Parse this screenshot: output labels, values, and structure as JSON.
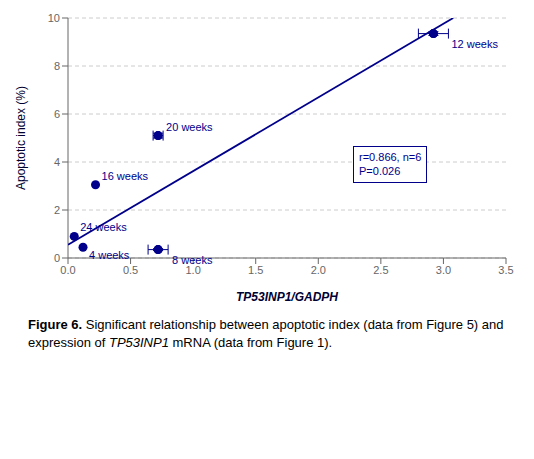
{
  "chart_data": {
    "type": "scatter",
    "x_label": "TP53INP1/GADPH",
    "y_label": "Apoptotic index (%)",
    "color": "#00008B",
    "x": [
      0.05,
      0.12,
      0.22,
      0.72,
      0.72,
      2.92
    ],
    "values": [
      0.9,
      0.45,
      3.05,
      5.1,
      0.35,
      9.35
    ],
    "xerr": [
      0.0,
      0.0,
      0.0,
      0.04,
      0.08,
      0.12
    ],
    "yerr": [
      0.0,
      0.0,
      0.0,
      0.1,
      0.04,
      0.08
    ],
    "point_labels": [
      "24 weeks",
      "4 weeks",
      "16 weeks",
      "20 weeks",
      "8 weeks",
      "12 weeks"
    ],
    "fit_line": {
      "type": "line",
      "x": [
        0.0,
        3.0778894472
      ],
      "values": [
        0.55,
        9.999120603
      ]
    },
    "annotations": [
      "r=0.866, n=6\nP=0.026"
    ],
    "xlim": [
      0.0,
      3.5
    ],
    "ylim": [
      0,
      10
    ],
    "xticks": [
      {
        "value": 0.0,
        "label": "0.0"
      },
      0.5,
      {
        "value": 1.0,
        "label": "1.0"
      },
      1.5,
      {
        "value": 2.0,
        "label": "2.0"
      },
      2.5,
      {
        "value": 3.0,
        "label": "3.0"
      },
      3.5
    ],
    "yticks": [
      0,
      2,
      4,
      6,
      8,
      10
    ],
    "grid": true,
    "caption": [
      "Figure 6.",
      " Significant relationship between apoptotic index (data from Figure 5) and expression of ",
      "TP53INP1",
      " mRNA (data from Figure 1)."
    ]
  }
}
